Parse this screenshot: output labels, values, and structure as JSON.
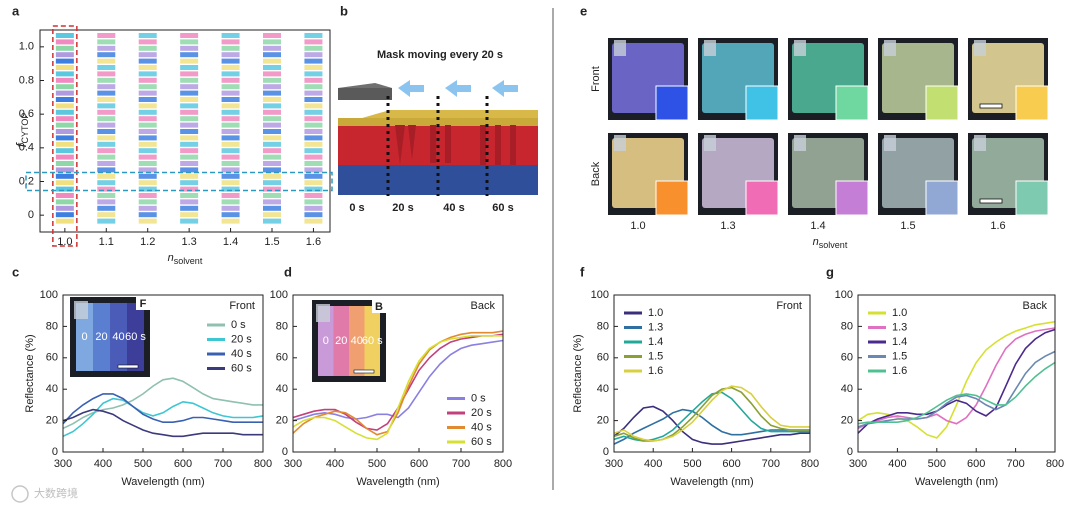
{
  "panel_labels": [
    "a",
    "b",
    "c",
    "d",
    "e",
    "f",
    "g"
  ],
  "panel_a": {
    "y_label": {
      "symbol": "f",
      "subscript": "CYTOP"
    },
    "x_label": {
      "symbol": "n",
      "subscript": "solvent"
    },
    "xlim": [
      0.94,
      1.64
    ],
    "ylim": [
      -0.1,
      1.1
    ],
    "xticks": [
      {
        "value": 1,
        "label": "1.0"
      },
      1.1,
      1.2,
      1.3,
      1.4,
      1.5,
      1.6
    ],
    "yticks": [
      0,
      0.2,
      0.4,
      0.6,
      0.8,
      {
        "value": 1,
        "label": "1.0"
      }
    ],
    "stripe_colors": [
      "#5cc8e0",
      "#f08ac0",
      "#8ed8a8",
      "#b09ae0",
      "#3d7fe0",
      "#f0e080"
    ],
    "highlight_column_color": "#d03030",
    "highlight_row_color": "#2a9ac0"
  },
  "panel_b": {
    "title": "Mask moving every 20 s",
    "times": [
      "0 s",
      "20 s",
      "40 s",
      "60 s"
    ]
  },
  "panel_e": {
    "rows": [
      "Front",
      "Back"
    ],
    "columns": [
      "1.0",
      "1.3",
      "1.4",
      "1.5",
      "1.6"
    ],
    "x_label": {
      "symbol": "n",
      "subscript": "solvent"
    },
    "photo_colors": [
      [
        "#6a64c4",
        "#52a6b8",
        "#4aa88e",
        "#a8b68e",
        "#d2c68e"
      ],
      [
        "#d6be80",
        "#b4a8c2",
        "#92a292",
        "#92a2a4",
        "#92aa9a"
      ]
    ],
    "swatch_colors": [
      [
        "#2f52e6",
        "#3fc2e6",
        "#6ed8a0",
        "#c2e072",
        "#f8cc4e"
      ],
      [
        "#f8902e",
        "#f06cb4",
        "#c47ed6",
        "#92a8d4",
        "#7ecab0"
      ]
    ]
  },
  "chart_data": [
    {
      "type": "line",
      "title": "Front",
      "ylabel": "Reflectance (%)",
      "xlabel": "Wavelength (nm)",
      "xlim": [
        300,
        800
      ],
      "ylim": [
        0,
        100
      ],
      "xticks": [
        300,
        400,
        500,
        600,
        700,
        800
      ],
      "yticks": [
        0,
        20,
        40,
        60,
        80,
        100
      ],
      "legend": "top-right",
      "inset": {
        "badge": "F",
        "labels": [
          "0",
          "20",
          "40",
          "60 s"
        ],
        "colors": [
          "#7fa8e0",
          "#5a7ed0",
          "#4a5cb8",
          "#3c3e9a"
        ]
      },
      "x": [
        300,
        325,
        350,
        375,
        400,
        425,
        450,
        475,
        500,
        525,
        550,
        575,
        600,
        625,
        650,
        675,
        700,
        725,
        750,
        775,
        800
      ],
      "series": [
        {
          "name": "0 s",
          "color": "#8fc0b0",
          "values": [
            15,
            18,
            22,
            25,
            27,
            28,
            30,
            33,
            37,
            42,
            46,
            47,
            45,
            41,
            37,
            34,
            33,
            32,
            31,
            30,
            30
          ]
        },
        {
          "name": "20 s",
          "color": "#3ec6d2",
          "values": [
            10,
            13,
            18,
            24,
            31,
            34,
            33,
            29,
            25,
            23,
            25,
            29,
            32,
            31,
            28,
            25,
            23,
            22,
            22,
            22,
            23
          ]
        },
        {
          "name": "40 s",
          "color": "#3a60b2",
          "values": [
            18,
            25,
            30,
            34,
            37,
            37,
            34,
            29,
            24,
            21,
            19,
            19,
            20,
            22,
            22,
            21,
            20,
            19,
            19,
            19,
            19
          ]
        },
        {
          "name": "60 s",
          "color": "#3b3a7c",
          "values": [
            20,
            22,
            25,
            27,
            26,
            24,
            20,
            17,
            14,
            12,
            11,
            10,
            10,
            11,
            12,
            12,
            12,
            12,
            11,
            11,
            11
          ]
        }
      ]
    },
    {
      "type": "line",
      "title": "Back",
      "xlabel": "Wavelength (nm)",
      "xlim": [
        300,
        800
      ],
      "ylim": [
        0,
        100
      ],
      "xticks": [
        300,
        400,
        500,
        600,
        700,
        800
      ],
      "yticks": [
        0,
        20,
        40,
        60,
        80,
        100
      ],
      "legend": "bottom-right",
      "inset": {
        "badge": "B",
        "labels": [
          "0",
          "20",
          "40",
          "60 s"
        ],
        "colors": [
          "#c89ad8",
          "#e07aa8",
          "#f0a070",
          "#f0d060"
        ]
      },
      "x": [
        300,
        325,
        350,
        375,
        400,
        425,
        450,
        475,
        500,
        525,
        550,
        575,
        600,
        625,
        650,
        675,
        700,
        725,
        750,
        775,
        800
      ],
      "series": [
        {
          "name": "0 s",
          "color": "#8a80e2",
          "values": [
            20,
            22,
            24,
            25,
            24,
            22,
            21,
            22,
            24,
            24,
            22,
            28,
            38,
            48,
            56,
            62,
            66,
            68,
            69,
            70,
            71
          ]
        },
        {
          "name": "20 s",
          "color": "#c2407c",
          "values": [
            22,
            24,
            26,
            27,
            27,
            24,
            19,
            15,
            14,
            18,
            28,
            40,
            52,
            60,
            66,
            70,
            72,
            73,
            74,
            74,
            75
          ]
        },
        {
          "name": "40 s",
          "color": "#e28a30",
          "values": [
            12,
            18,
            22,
            24,
            26,
            25,
            21,
            15,
            11,
            13,
            25,
            42,
            56,
            65,
            70,
            73,
            75,
            76,
            76,
            76,
            77
          ]
        },
        {
          "name": "60 s",
          "color": "#d6e032",
          "values": [
            16,
            20,
            22,
            22,
            20,
            16,
            12,
            9,
            8,
            12,
            28,
            45,
            58,
            66,
            70,
            72,
            73,
            74,
            74,
            74,
            74
          ]
        }
      ]
    },
    {
      "type": "line",
      "title": "Front",
      "ylabel": "Reflectance (%)",
      "xlabel": "Wavelength (nm)",
      "xlim": [
        300,
        800
      ],
      "ylim": [
        0,
        100
      ],
      "xticks": [
        300,
        400,
        500,
        600,
        700,
        800
      ],
      "yticks": [
        0,
        20,
        40,
        60,
        80,
        100
      ],
      "legend": "top-left",
      "x": [
        300,
        325,
        350,
        375,
        400,
        425,
        450,
        475,
        500,
        525,
        550,
        575,
        600,
        625,
        650,
        675,
        700,
        725,
        750,
        775,
        800
      ],
      "series": [
        {
          "name": "1.0",
          "color": "#3b2f7c",
          "values": [
            10,
            15,
            22,
            28,
            29,
            26,
            20,
            13,
            8,
            6,
            5,
            5,
            6,
            7,
            8,
            9,
            10,
            11,
            11,
            12,
            12
          ]
        },
        {
          "name": "1.3",
          "color": "#2f70a2",
          "values": [
            5,
            8,
            12,
            15,
            18,
            21,
            25,
            27,
            26,
            22,
            17,
            13,
            11,
            11,
            12,
            13,
            14,
            14,
            14,
            14,
            14
          ]
        },
        {
          "name": "1.4",
          "color": "#22a89a",
          "values": [
            8,
            10,
            8,
            7,
            8,
            10,
            14,
            20,
            26,
            32,
            37,
            38,
            34,
            27,
            20,
            15,
            13,
            13,
            13,
            13,
            13
          ]
        },
        {
          "name": "1.5",
          "color": "#8aa032",
          "values": [
            10,
            12,
            9,
            7,
            7,
            8,
            11,
            16,
            22,
            29,
            36,
            40,
            41,
            38,
            31,
            23,
            17,
            15,
            14,
            14,
            14
          ]
        },
        {
          "name": "1.6",
          "color": "#d8d042",
          "values": [
            12,
            14,
            10,
            8,
            7,
            8,
            10,
            14,
            19,
            26,
            33,
            39,
            42,
            41,
            37,
            29,
            22,
            17,
            16,
            16,
            16
          ]
        }
      ]
    },
    {
      "type": "line",
      "title": "Back",
      "xlabel": "Wavelength (nm)",
      "xlim": [
        300,
        800
      ],
      "ylim": [
        0,
        100
      ],
      "xticks": [
        300,
        400,
        500,
        600,
        700,
        800
      ],
      "yticks": [
        0,
        20,
        40,
        60,
        80,
        100
      ],
      "legend": "top-left",
      "x": [
        300,
        325,
        350,
        375,
        400,
        425,
        450,
        475,
        500,
        525,
        550,
        575,
        600,
        625,
        650,
        675,
        700,
        725,
        750,
        775,
        800
      ],
      "series": [
        {
          "name": "1.0",
          "color": "#d6e032",
          "values": [
            20,
            24,
            25,
            24,
            22,
            20,
            16,
            11,
            9,
            16,
            30,
            45,
            57,
            65,
            70,
            74,
            77,
            79,
            81,
            82,
            83
          ]
        },
        {
          "name": "1.3",
          "color": "#e070c2",
          "values": [
            15,
            18,
            20,
            22,
            23,
            22,
            21,
            22,
            24,
            20,
            18,
            22,
            30,
            42,
            55,
            66,
            72,
            75,
            77,
            78,
            79
          ]
        },
        {
          "name": "1.4",
          "color": "#4a2a8c",
          "values": [
            12,
            18,
            21,
            23,
            25,
            25,
            24,
            24,
            26,
            30,
            33,
            31,
            26,
            23,
            28,
            42,
            56,
            66,
            72,
            76,
            78
          ]
        },
        {
          "name": "1.5",
          "color": "#6a88b2",
          "values": [
            16,
            18,
            19,
            20,
            21,
            21,
            21,
            22,
            26,
            31,
            35,
            36,
            34,
            30,
            27,
            30,
            40,
            50,
            57,
            61,
            64
          ]
        },
        {
          "name": "1.6",
          "color": "#50c092",
          "values": [
            18,
            19,
            19,
            19,
            19,
            20,
            22,
            25,
            29,
            33,
            36,
            37,
            36,
            33,
            30,
            30,
            35,
            42,
            48,
            53,
            57
          ]
        }
      ]
    }
  ],
  "watermark": "大数跨境"
}
